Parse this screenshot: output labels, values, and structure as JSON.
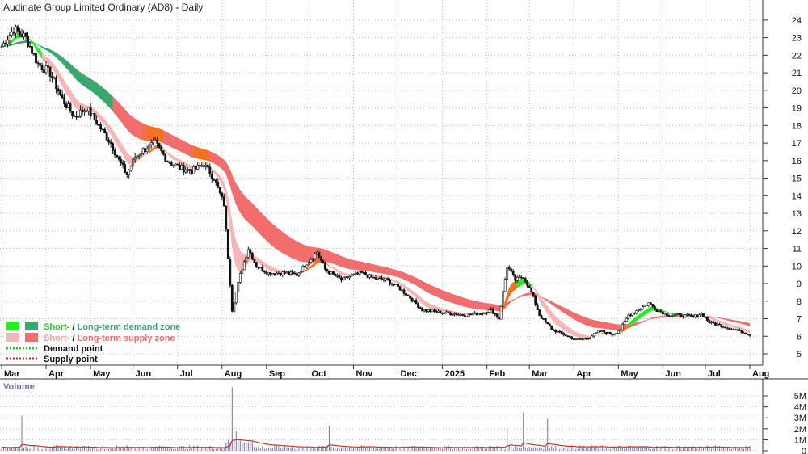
{
  "chart_data": {
    "type": "candlestick",
    "title": "Audinate Group Limited Ordinary (AD8) - Daily",
    "ylim": [
      5,
      24.5
    ],
    "y_ticks": [
      5,
      6,
      7,
      8,
      9,
      10,
      11,
      12,
      13,
      14,
      15,
      16,
      17,
      18,
      19,
      20,
      21,
      22,
      23,
      24
    ],
    "x_labels": [
      "Mar",
      "Apr",
      "May",
      "Jun",
      "Jul",
      "Aug",
      "Sep",
      "Oct",
      "Nov",
      "Dec",
      "2025",
      "Feb",
      "Mar",
      "Apr",
      "May",
      "Jun",
      "Jul",
      "Aug"
    ],
    "x_label_days": [
      0,
      22,
      44,
      65,
      87,
      109,
      131,
      152,
      174,
      196,
      218,
      240,
      261,
      283,
      305,
      327,
      348,
      370
    ],
    "total_days": 370,
    "grid": true,
    "colors": {
      "short_demand": "#22ee22",
      "long_demand": "#3aa86e",
      "short_supply": "#f6b6b6",
      "long_supply": "#f26d6d",
      "overlap": "#f5731f",
      "volume": "#7b6fb3",
      "volume_avg": "#c0392b",
      "demand_point": "#22cc22",
      "supply_point": "#cc2222"
    },
    "price_keypoints": [
      [
        0,
        22.5
      ],
      [
        6,
        23.5
      ],
      [
        12,
        23
      ],
      [
        18,
        21.5
      ],
      [
        24,
        21
      ],
      [
        30,
        19.5
      ],
      [
        36,
        18.5
      ],
      [
        42,
        19
      ],
      [
        48,
        18
      ],
      [
        54,
        17
      ],
      [
        58,
        16
      ],
      [
        62,
        15.2
      ],
      [
        66,
        16.2
      ],
      [
        70,
        16.6
      ],
      [
        76,
        17
      ],
      [
        82,
        16
      ],
      [
        88,
        15.6
      ],
      [
        94,
        15.4
      ],
      [
        100,
        15.8
      ],
      [
        105,
        15
      ],
      [
        110,
        13.5
      ],
      [
        114,
        7.5
      ],
      [
        118,
        9.5
      ],
      [
        122,
        11
      ],
      [
        126,
        10
      ],
      [
        132,
        9.6
      ],
      [
        140,
        9.6
      ],
      [
        146,
        9.5
      ],
      [
        152,
        10.3
      ],
      [
        156,
        10.8
      ],
      [
        160,
        9.8
      ],
      [
        164,
        9.5
      ],
      [
        168,
        9.2
      ],
      [
        172,
        9.4
      ],
      [
        178,
        9.6
      ],
      [
        184,
        9.3
      ],
      [
        190,
        9.2
      ],
      [
        196,
        8.8
      ],
      [
        202,
        8.2
      ],
      [
        208,
        7.5
      ],
      [
        214,
        7.4
      ],
      [
        222,
        7.3
      ],
      [
        230,
        7.2
      ],
      [
        236,
        7.3
      ],
      [
        242,
        7.5
      ],
      [
        246,
        7.0
      ],
      [
        250,
        10
      ],
      [
        254,
        9.2
      ],
      [
        258,
        9.4
      ],
      [
        262,
        8.5
      ],
      [
        266,
        7.2
      ],
      [
        272,
        6.4
      ],
      [
        278,
        6.1
      ],
      [
        284,
        5.8
      ],
      [
        290,
        5.9
      ],
      [
        296,
        6.3
      ],
      [
        302,
        6.1
      ],
      [
        306,
        6.4
      ],
      [
        310,
        7.2
      ],
      [
        316,
        7.6
      ],
      [
        320,
        7.9
      ],
      [
        324,
        7.5
      ],
      [
        330,
        7.2
      ],
      [
        336,
        7.2
      ],
      [
        342,
        7.1
      ],
      [
        346,
        7.3
      ],
      [
        350,
        6.8
      ],
      [
        356,
        6.6
      ],
      [
        362,
        6.4
      ],
      [
        370,
        6.1
      ]
    ],
    "volume_ylim": [
      0,
      5.3
    ],
    "volume_ticks": [
      "5M",
      "4M",
      "3M",
      "2M",
      "1M",
      "0"
    ],
    "volume_tick_values": [
      5,
      4,
      3,
      2,
      1,
      0
    ],
    "volume_label": "Volume",
    "volume_spikes": [
      [
        10,
        3.2
      ],
      [
        114,
        5.8
      ],
      [
        116,
        1.8
      ],
      [
        118,
        1.0
      ],
      [
        162,
        2.3
      ],
      [
        250,
        2.0
      ],
      [
        252,
        1.1
      ],
      [
        258,
        3.5
      ],
      [
        270,
        2.9
      ],
      [
        122,
        0.8
      ],
      [
        62,
        0.5
      ]
    ],
    "legend": {
      "row1_sep": "/",
      "row1_short": "Short-",
      "row1_long": "Long-term demand zone",
      "row2_sep": "/",
      "row2_short": "Short-",
      "row2_long": "Long-term supply zone",
      "row3": "Demand point",
      "row4": "Supply point"
    }
  }
}
